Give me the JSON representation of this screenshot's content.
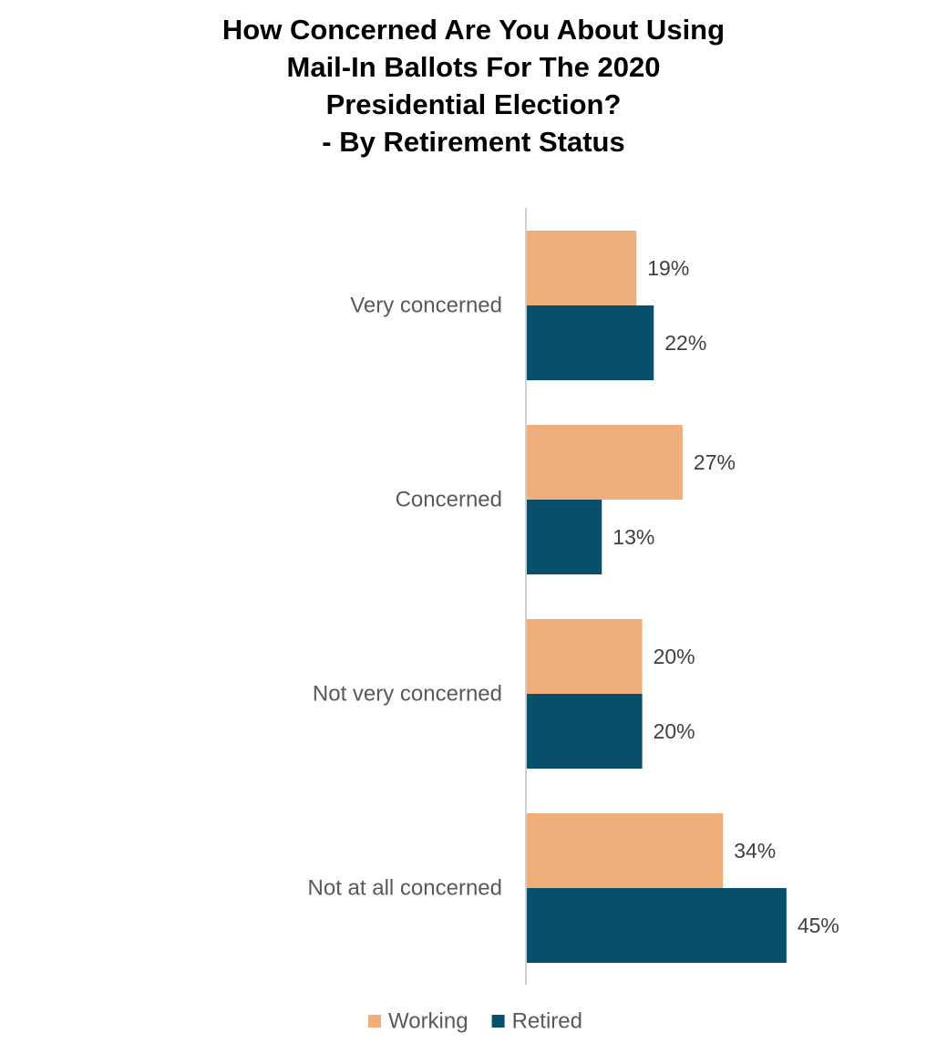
{
  "chart_data": {
    "type": "bar",
    "orientation": "horizontal",
    "title_lines": [
      "How Concerned Are You About Using",
      "Mail-In Ballots For The 2020",
      "Presidential Election?",
      "- By Retirement Status"
    ],
    "categories": [
      "Very concerned",
      "Concerned",
      "Not very concerned",
      "Not at all concerned"
    ],
    "series": [
      {
        "name": "Working",
        "color": "#F0AF7A",
        "values": [
          19,
          27,
          20,
          34
        ],
        "labels": [
          "19%",
          "27%",
          "20%",
          "34%"
        ]
      },
      {
        "name": "Retired",
        "color": "#074F6A",
        "values": [
          22,
          13,
          20,
          45
        ],
        "labels": [
          "22%",
          "13%",
          "20%",
          "45%"
        ]
      }
    ],
    "value_unit": "%",
    "grid": false,
    "legend_position": "bottom"
  }
}
